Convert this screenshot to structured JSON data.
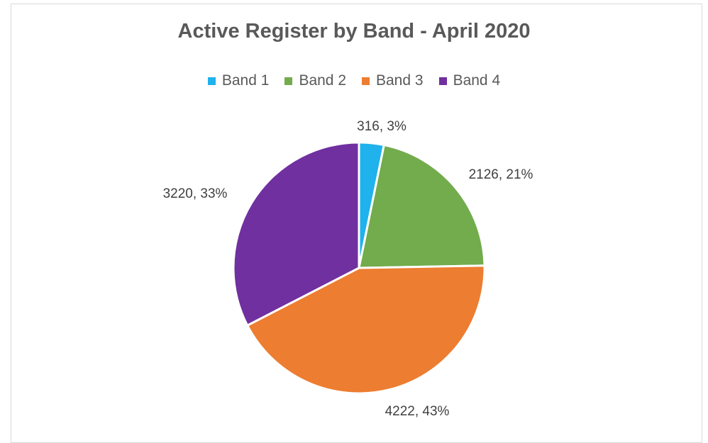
{
  "chart_data": {
    "type": "pie",
    "title": "Active Register by Band - April 2020",
    "legend_position": "top",
    "slices": [
      {
        "label": "Band 1",
        "value": 316,
        "percent_label": "316, 3%",
        "color": "#1fb2ec"
      },
      {
        "label": "Band 2",
        "value": 2126,
        "percent_label": "2126, 21%",
        "color": "#72ac4d"
      },
      {
        "label": "Band 3",
        "value": 4222,
        "percent_label": "4222, 43%",
        "color": "#ed7d31"
      },
      {
        "label": "Band 4",
        "value": 3220,
        "percent_label": "3220, 33%",
        "color": "#7030a0"
      }
    ]
  }
}
